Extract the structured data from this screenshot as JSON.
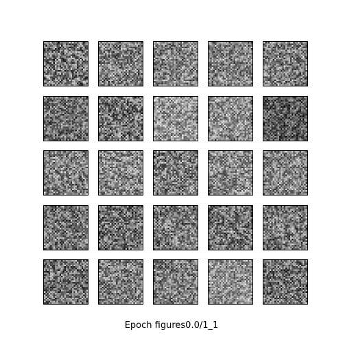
{
  "figure": {
    "caption": "Epoch figures0.0/1_1",
    "grid": {
      "rows": 5,
      "cols": 5,
      "colormap": "gray",
      "tiles": [
        {
          "row": 0,
          "col": 0,
          "mean_brightness": 0.46,
          "contrast": 0.34
        },
        {
          "row": 0,
          "col": 1,
          "mean_brightness": 0.5,
          "contrast": 0.3
        },
        {
          "row": 0,
          "col": 2,
          "mean_brightness": 0.52,
          "contrast": 0.3
        },
        {
          "row": 0,
          "col": 3,
          "mean_brightness": 0.52,
          "contrast": 0.3
        },
        {
          "row": 0,
          "col": 4,
          "mean_brightness": 0.5,
          "contrast": 0.32
        },
        {
          "row": 1,
          "col": 0,
          "mean_brightness": 0.44,
          "contrast": 0.28
        },
        {
          "row": 1,
          "col": 1,
          "mean_brightness": 0.45,
          "contrast": 0.34
        },
        {
          "row": 1,
          "col": 2,
          "mean_brightness": 0.6,
          "contrast": 0.28
        },
        {
          "row": 1,
          "col": 3,
          "mean_brightness": 0.56,
          "contrast": 0.28
        },
        {
          "row": 1,
          "col": 4,
          "mean_brightness": 0.36,
          "contrast": 0.28
        },
        {
          "row": 2,
          "col": 0,
          "mean_brightness": 0.52,
          "contrast": 0.3
        },
        {
          "row": 2,
          "col": 1,
          "mean_brightness": 0.54,
          "contrast": 0.3
        },
        {
          "row": 2,
          "col": 2,
          "mean_brightness": 0.48,
          "contrast": 0.32
        },
        {
          "row": 2,
          "col": 3,
          "mean_brightness": 0.54,
          "contrast": 0.3
        },
        {
          "row": 2,
          "col": 4,
          "mean_brightness": 0.52,
          "contrast": 0.28
        },
        {
          "row": 3,
          "col": 0,
          "mean_brightness": 0.46,
          "contrast": 0.3
        },
        {
          "row": 3,
          "col": 1,
          "mean_brightness": 0.44,
          "contrast": 0.32
        },
        {
          "row": 3,
          "col": 2,
          "mean_brightness": 0.48,
          "contrast": 0.32
        },
        {
          "row": 3,
          "col": 3,
          "mean_brightness": 0.46,
          "contrast": 0.32
        },
        {
          "row": 3,
          "col": 4,
          "mean_brightness": 0.48,
          "contrast": 0.32
        },
        {
          "row": 4,
          "col": 0,
          "mean_brightness": 0.44,
          "contrast": 0.32
        },
        {
          "row": 4,
          "col": 1,
          "mean_brightness": 0.5,
          "contrast": 0.3
        },
        {
          "row": 4,
          "col": 2,
          "mean_brightness": 0.5,
          "contrast": 0.3
        },
        {
          "row": 4,
          "col": 3,
          "mean_brightness": 0.58,
          "contrast": 0.26
        },
        {
          "row": 4,
          "col": 4,
          "mean_brightness": 0.44,
          "contrast": 0.32
        }
      ]
    }
  }
}
